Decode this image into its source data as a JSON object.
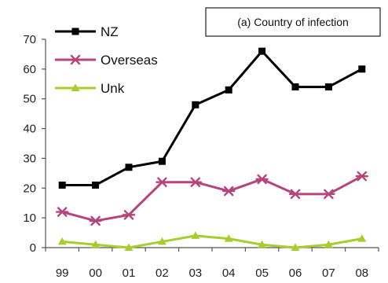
{
  "chart_data": {
    "type": "line",
    "title": "(a) Country of infection",
    "categories": [
      "99",
      "00",
      "01",
      "02",
      "03",
      "04",
      "05",
      "06",
      "07",
      "08"
    ],
    "ylim": [
      0,
      70
    ],
    "yticks": [
      0,
      10,
      20,
      30,
      40,
      50,
      60,
      70
    ],
    "grid": false,
    "legend_position": "top-left",
    "series": [
      {
        "name": "NZ",
        "color": "#000000",
        "marker": "square",
        "values": [
          21,
          21,
          27,
          29,
          48,
          53,
          66,
          54,
          54,
          60
        ]
      },
      {
        "name": "Overseas",
        "color": "#b5457c",
        "marker": "asterisk",
        "values": [
          12,
          9,
          11,
          22,
          22,
          19,
          23,
          18,
          18,
          24
        ]
      },
      {
        "name": "Unk",
        "color": "#a8cd2e",
        "marker": "triangle",
        "values": [
          2,
          1,
          0,
          2,
          4,
          3,
          1,
          0,
          1,
          3
        ]
      }
    ]
  }
}
